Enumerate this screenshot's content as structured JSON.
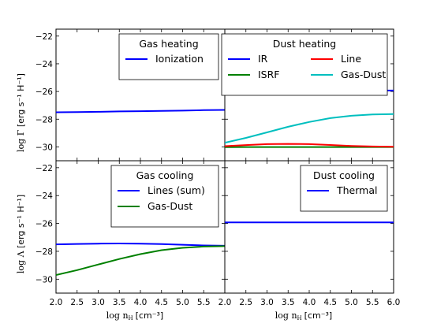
{
  "chart_data": [
    {
      "type": "line",
      "panel": "top-left",
      "x": [
        2.0,
        2.5,
        3.0,
        3.5,
        4.0,
        4.5,
        5.0,
        5.5,
        6.0
      ],
      "xlim": [
        2.0,
        6.0
      ],
      "ylim": [
        -31,
        -21.5
      ],
      "yticks": [
        -30,
        -28,
        -26,
        -24,
        -22
      ],
      "ylabel_prefix": "log Γ",
      "ylabel_suffix": "[erg s⁻¹ H⁻¹]",
      "legend_title": "Gas heating",
      "legend_placement": "top-right",
      "series": [
        {
          "name": "Ionization",
          "color": "#0000ff",
          "values": [
            -27.5,
            -27.49,
            -27.47,
            -27.44,
            -27.42,
            -27.4,
            -27.38,
            -27.35,
            -27.33
          ]
        }
      ]
    },
    {
      "type": "line",
      "panel": "top-right",
      "x": [
        2.0,
        2.5,
        3.0,
        3.5,
        4.0,
        4.5,
        5.0,
        5.5,
        6.0
      ],
      "xlim": [
        2.0,
        6.0
      ],
      "ylim": [
        -31,
        -21.5
      ],
      "legend_title": "Dust heating",
      "legend_placement": "top-right",
      "series": [
        {
          "name": "IR",
          "color": "#0000ff",
          "values": [
            -25.93,
            -25.93,
            -25.93,
            -25.93,
            -25.93,
            -25.93,
            -25.93,
            -25.93,
            -25.93
          ]
        },
        {
          "name": "ISRF",
          "color": "#008000",
          "values": [
            -30.02,
            -30.01,
            -30.01,
            -30.01,
            -30.01,
            -30.01,
            -30.01,
            -30.01,
            -30.01
          ]
        },
        {
          "name": "Line",
          "color": "#ff0000",
          "values": [
            -29.95,
            -29.87,
            -29.8,
            -29.78,
            -29.8,
            -29.86,
            -29.93,
            -29.97,
            -29.99
          ]
        },
        {
          "name": "Gas-Dust",
          "color": "#00bfbf",
          "values": [
            -29.7,
            -29.35,
            -28.95,
            -28.55,
            -28.2,
            -27.92,
            -27.75,
            -27.66,
            -27.63
          ]
        }
      ]
    },
    {
      "type": "line",
      "panel": "bottom-left",
      "x": [
        2.0,
        2.5,
        3.0,
        3.5,
        4.0,
        4.5,
        5.0,
        5.5,
        6.0
      ],
      "xlim": [
        2.0,
        6.0
      ],
      "ylim": [
        -31,
        -21.5
      ],
      "yticks": [
        -30,
        -28,
        -26,
        -24,
        -22
      ],
      "xticks": [
        "2.0",
        "2.5",
        "3.0",
        "3.5",
        "4.0",
        "4.5",
        "5.0",
        "5.5"
      ],
      "ylabel_prefix": "log Λ",
      "ylabel_suffix": "[erg s⁻¹ H⁻¹]",
      "xlabel_prefix": "log n",
      "xlabel_sub": "H",
      "xlabel_suffix": "[cm⁻³]",
      "legend_title": "Gas cooling",
      "legend_placement": "top-right",
      "series": [
        {
          "name": "Lines (sum)",
          "color": "#0000ff",
          "values": [
            -27.5,
            -27.47,
            -27.45,
            -27.44,
            -27.45,
            -27.48,
            -27.53,
            -27.58,
            -27.6
          ]
        },
        {
          "name": "Gas-Dust",
          "color": "#008000",
          "values": [
            -29.7,
            -29.35,
            -28.95,
            -28.55,
            -28.2,
            -27.92,
            -27.75,
            -27.66,
            -27.63
          ]
        }
      ]
    },
    {
      "type": "line",
      "panel": "bottom-right",
      "x": [
        2.0,
        2.5,
        3.0,
        3.5,
        4.0,
        4.5,
        5.0,
        5.5,
        6.0
      ],
      "xlim": [
        2.0,
        6.0
      ],
      "ylim": [
        -31,
        -21.5
      ],
      "xticks": [
        "2.0",
        "2.5",
        "3.0",
        "3.5",
        "4.0",
        "4.5",
        "5.0",
        "5.5",
        "6.0"
      ],
      "xlabel_prefix": "log n",
      "xlabel_sub": "H",
      "xlabel_suffix": "[cm⁻³]",
      "legend_title": "Dust cooling",
      "legend_placement": "top-right",
      "series": [
        {
          "name": "Thermal",
          "color": "#0000ff",
          "values": [
            -25.93,
            -25.93,
            -25.93,
            -25.93,
            -25.93,
            -25.93,
            -25.92,
            -25.92,
            -25.92
          ]
        }
      ]
    }
  ]
}
